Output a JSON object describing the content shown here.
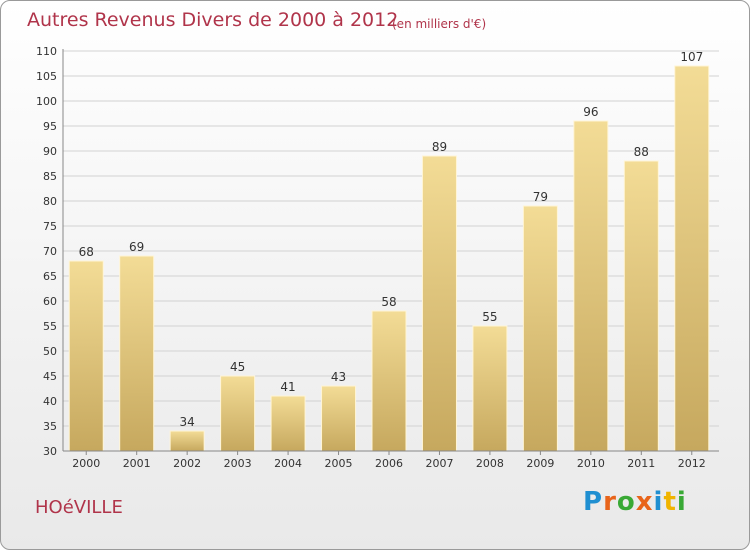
{
  "header": {
    "title": "Autres Revenus Divers de 2000 à 2012",
    "subtitle": "(en milliers d'€)"
  },
  "footer": {
    "city": "HOéVILLE",
    "logo": {
      "letters": [
        "P",
        "r",
        "o",
        "x",
        "i",
        "t",
        "i"
      ],
      "colors": [
        "#1f8fd1",
        "#e8641a",
        "#39a935",
        "#e8641a",
        "#1f8fd1",
        "#f0b400",
        "#39a935"
      ]
    }
  },
  "colors": {
    "bar_top": "#f3dc96",
    "bar_bottom": "#c6a85e",
    "title": "#b0344a"
  },
  "chart_data": {
    "type": "bar",
    "categories": [
      "2000",
      "2001",
      "2002",
      "2003",
      "2004",
      "2005",
      "2006",
      "2007",
      "2008",
      "2009",
      "2010",
      "2011",
      "2012"
    ],
    "values": [
      68,
      69,
      34,
      45,
      41,
      43,
      58,
      89,
      55,
      79,
      96,
      88,
      107
    ],
    "title": "Autres Revenus Divers de 2000 à 2012",
    "subtitle": "(en milliers d'€)",
    "ylim": [
      30,
      110
    ],
    "yticks": [
      30,
      35,
      40,
      45,
      50,
      55,
      60,
      65,
      70,
      75,
      80,
      85,
      90,
      95,
      100,
      105,
      110
    ],
    "grid": true,
    "data_labels": true
  }
}
